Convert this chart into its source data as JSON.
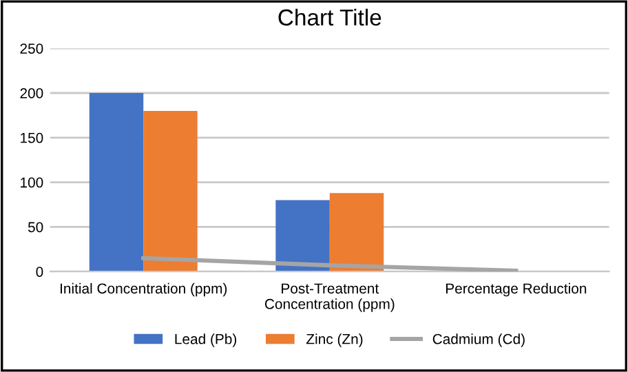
{
  "chart_data": {
    "type": "bar",
    "title": "Chart Title",
    "categories": [
      "Initial Concentration (ppm)",
      "Post-Treatment\nConcentration (ppm)",
      "Percentage Reduction"
    ],
    "series": [
      {
        "name": "Lead (Pb)",
        "color": "#4472c4",
        "values": [
          200,
          80,
          null
        ]
      },
      {
        "name": "Zinc (Zn)",
        "color": "#ed7d31",
        "values": [
          180,
          88,
          null
        ]
      },
      {
        "name": "Cadmium (Cd)",
        "color": "#a5a5a5",
        "type": "line",
        "values": [
          15,
          7,
          1
        ]
      }
    ],
    "ylim": [
      0,
      250
    ],
    "yticks": [
      0,
      50,
      100,
      150,
      200,
      250
    ],
    "grid": "y",
    "legend": "bottom"
  }
}
